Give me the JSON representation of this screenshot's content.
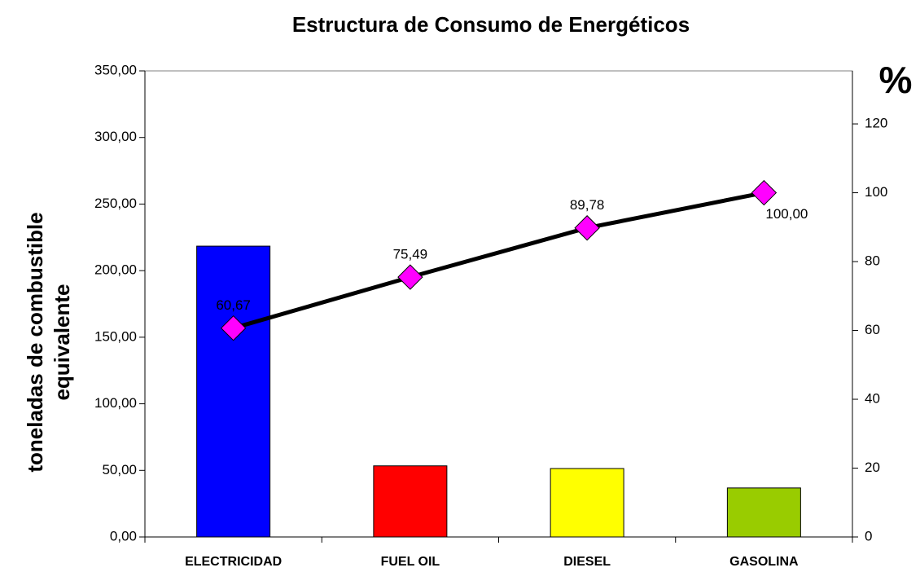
{
  "chart_data": {
    "type": "bar",
    "title": "Estructura de Consumo de Energéticos",
    "ylabel": [
      "toneladas de combustible",
      "equivalente"
    ],
    "y2label": "%",
    "categories": [
      "ELECTRICIDAD",
      "FUEL OIL",
      "DIESEL",
      "GASOLINA"
    ],
    "series": [
      {
        "type": "bar",
        "colors": [
          "#0000ff",
          "#ff0000",
          "#ffff00",
          "#99cc00"
        ],
        "values": [
          218.4,
          53.4,
          51.4,
          36.8
        ]
      },
      {
        "type": "line",
        "axis": "y2",
        "color": "#000000",
        "marker_color": "#ff00ff",
        "values": [
          60.67,
          75.49,
          89.78,
          100
        ],
        "value_labels": [
          "60,67",
          "75,49",
          "89,78",
          "100,00"
        ]
      }
    ],
    "ylim": [
      0,
      350
    ],
    "yticks": [
      {
        "value": 0,
        "label": "0,00"
      },
      {
        "value": 50,
        "label": "50,00"
      },
      {
        "value": 100,
        "label": "100,00"
      },
      {
        "value": 150,
        "label": "150,00"
      },
      {
        "value": 200,
        "label": "200,00"
      },
      {
        "value": 250,
        "label": "250,00"
      },
      {
        "value": 300,
        "label": "300,00"
      },
      {
        "value": 350,
        "label": "350,00"
      }
    ],
    "y2lim": [
      0,
      135.4
    ],
    "y2ticks": [
      0,
      20,
      40,
      60,
      80,
      100,
      120
    ]
  }
}
